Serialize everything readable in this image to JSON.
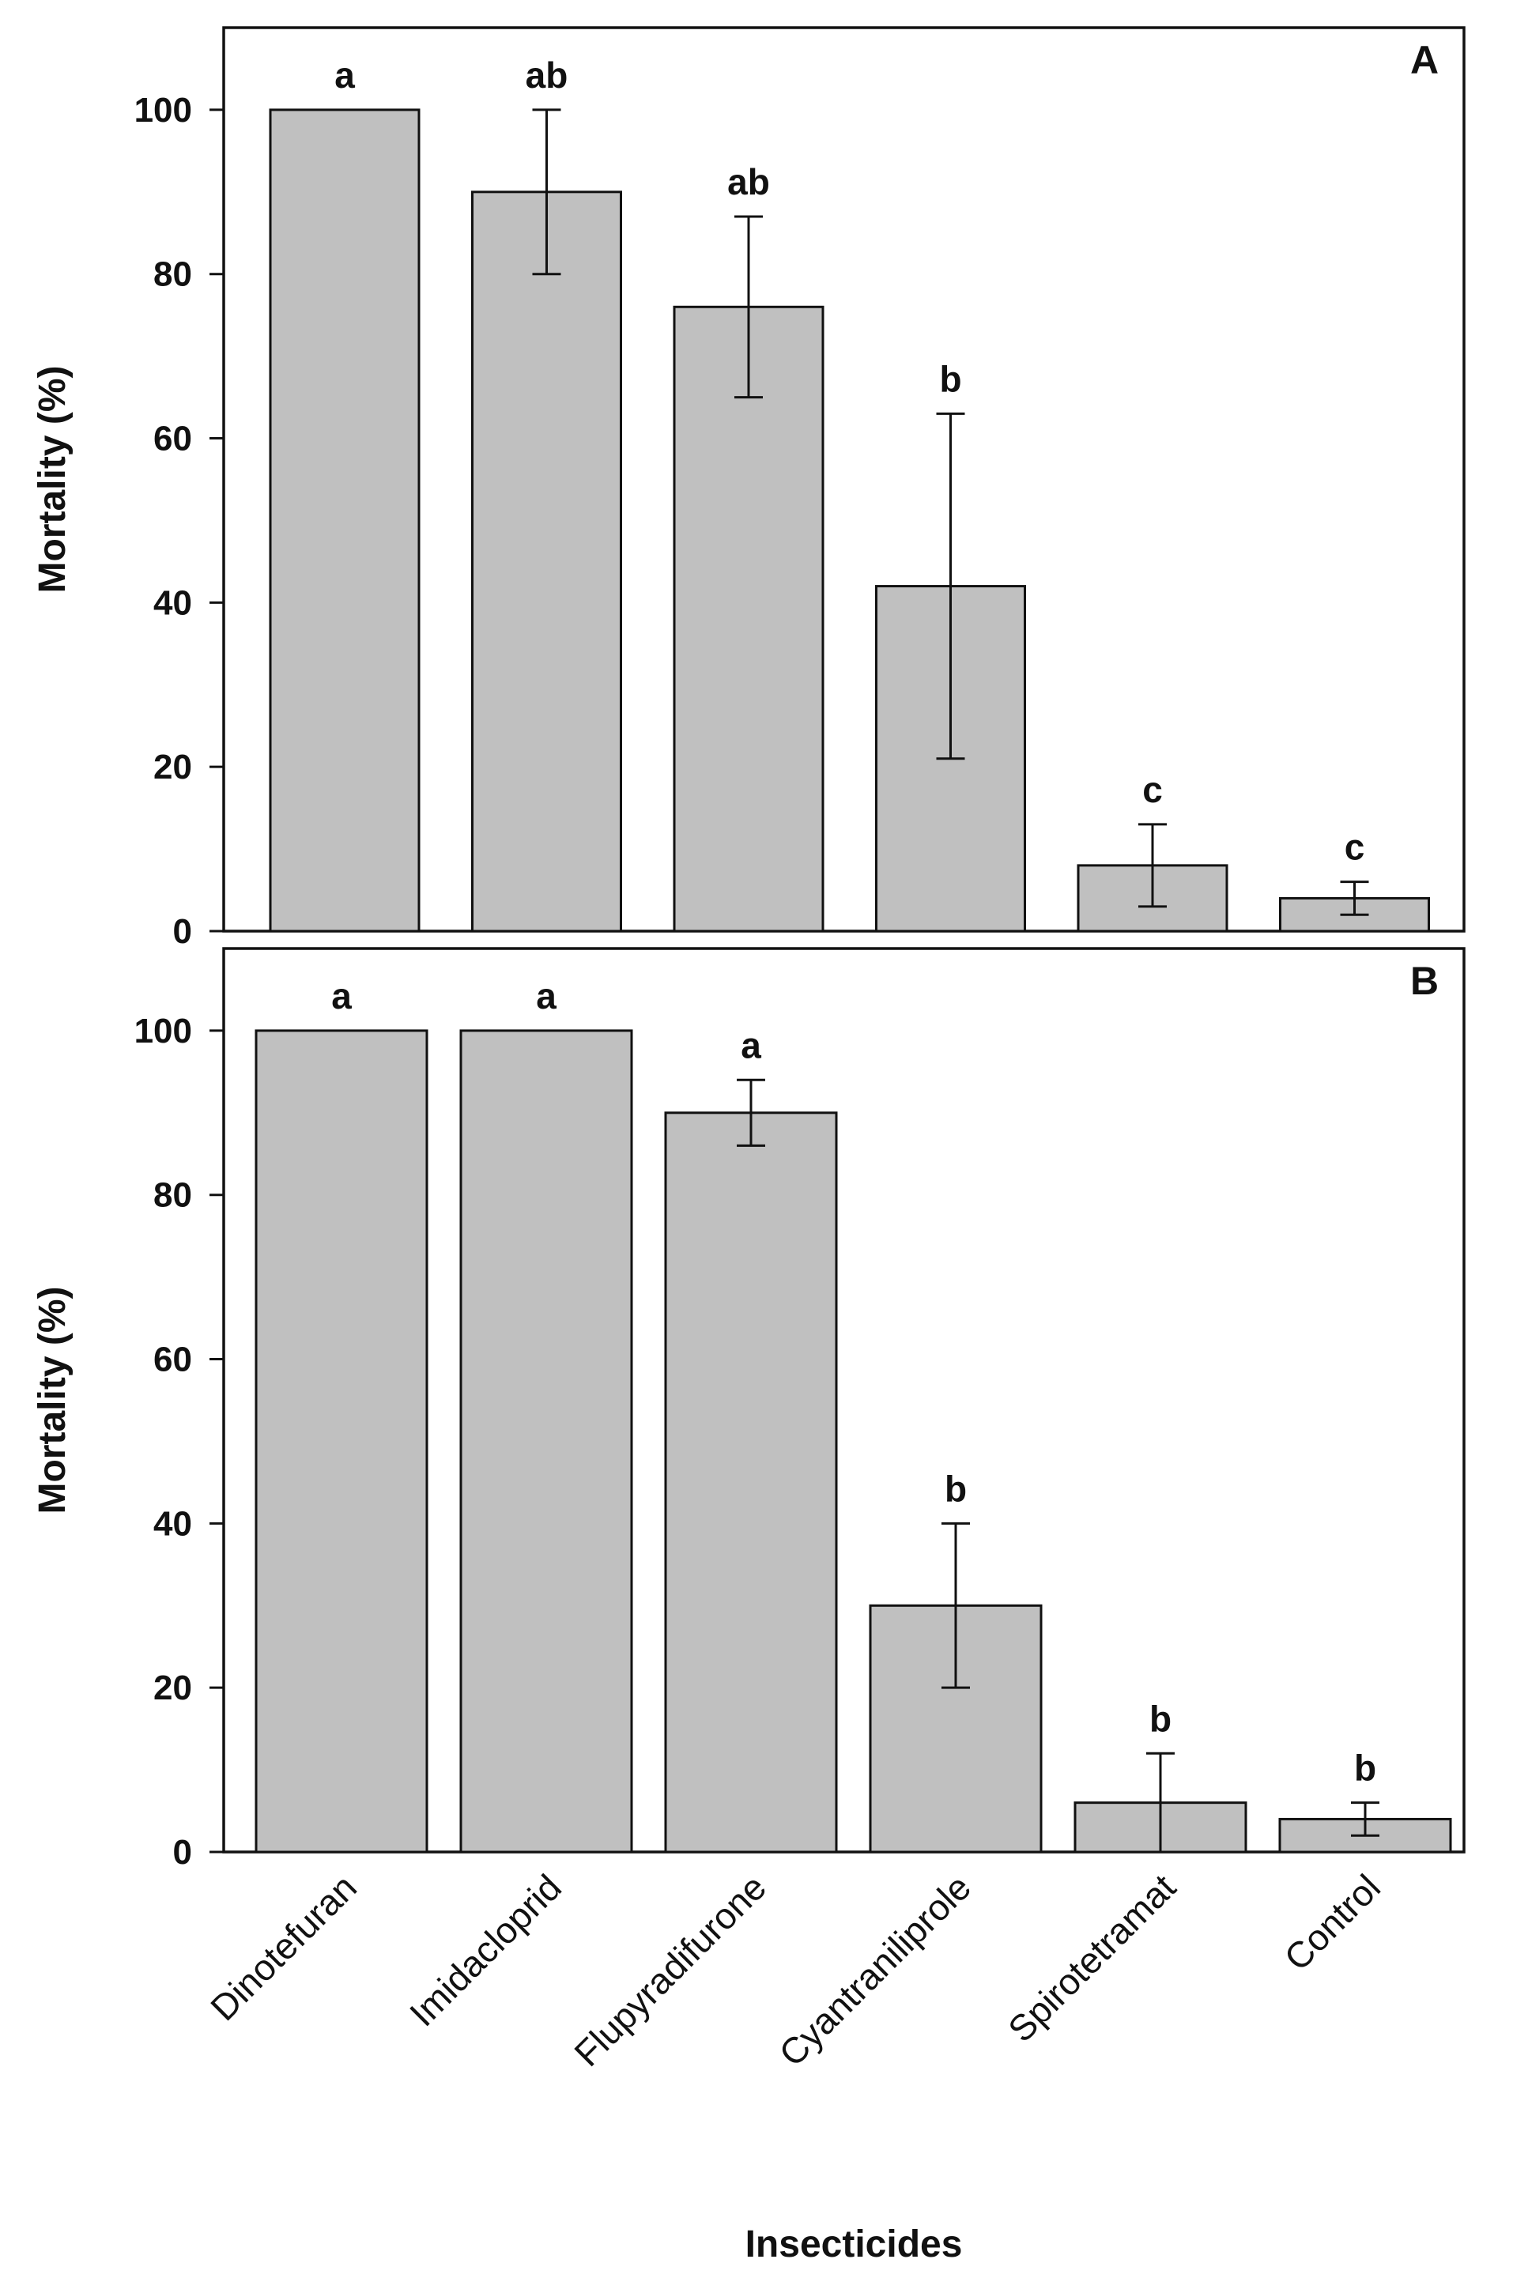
{
  "chart_data": {
    "type": "bar",
    "xlabel": "Insecticides",
    "categories": [
      "Dinotefuran",
      "Imidacloprid",
      "Flupyradifurone",
      "Cyantraniliprole",
      "Spirotetramat",
      "Control"
    ],
    "bar_color": "#c0c0c0",
    "panels": [
      {
        "panel_label": "A",
        "ylabel": "Mortality (%)",
        "ylim": [
          0,
          110
        ],
        "yticks": [
          0,
          20,
          40,
          60,
          80,
          100
        ],
        "values": [
          100,
          90,
          76,
          42,
          8,
          4
        ],
        "errors": [
          0,
          10,
          11,
          21,
          5,
          2
        ],
        "significance": [
          "a",
          "ab",
          "ab",
          "b",
          "c",
          "c"
        ]
      },
      {
        "panel_label": "B",
        "ylabel": "Mortality (%)",
        "ylim": [
          0,
          110
        ],
        "yticks": [
          0,
          20,
          40,
          60,
          80,
          100
        ],
        "values": [
          100,
          100,
          90,
          30,
          6,
          4
        ],
        "errors": [
          0,
          0,
          4,
          10,
          6,
          2
        ],
        "significance": [
          "a",
          "a",
          "a",
          "b",
          "b",
          "b"
        ]
      }
    ]
  }
}
